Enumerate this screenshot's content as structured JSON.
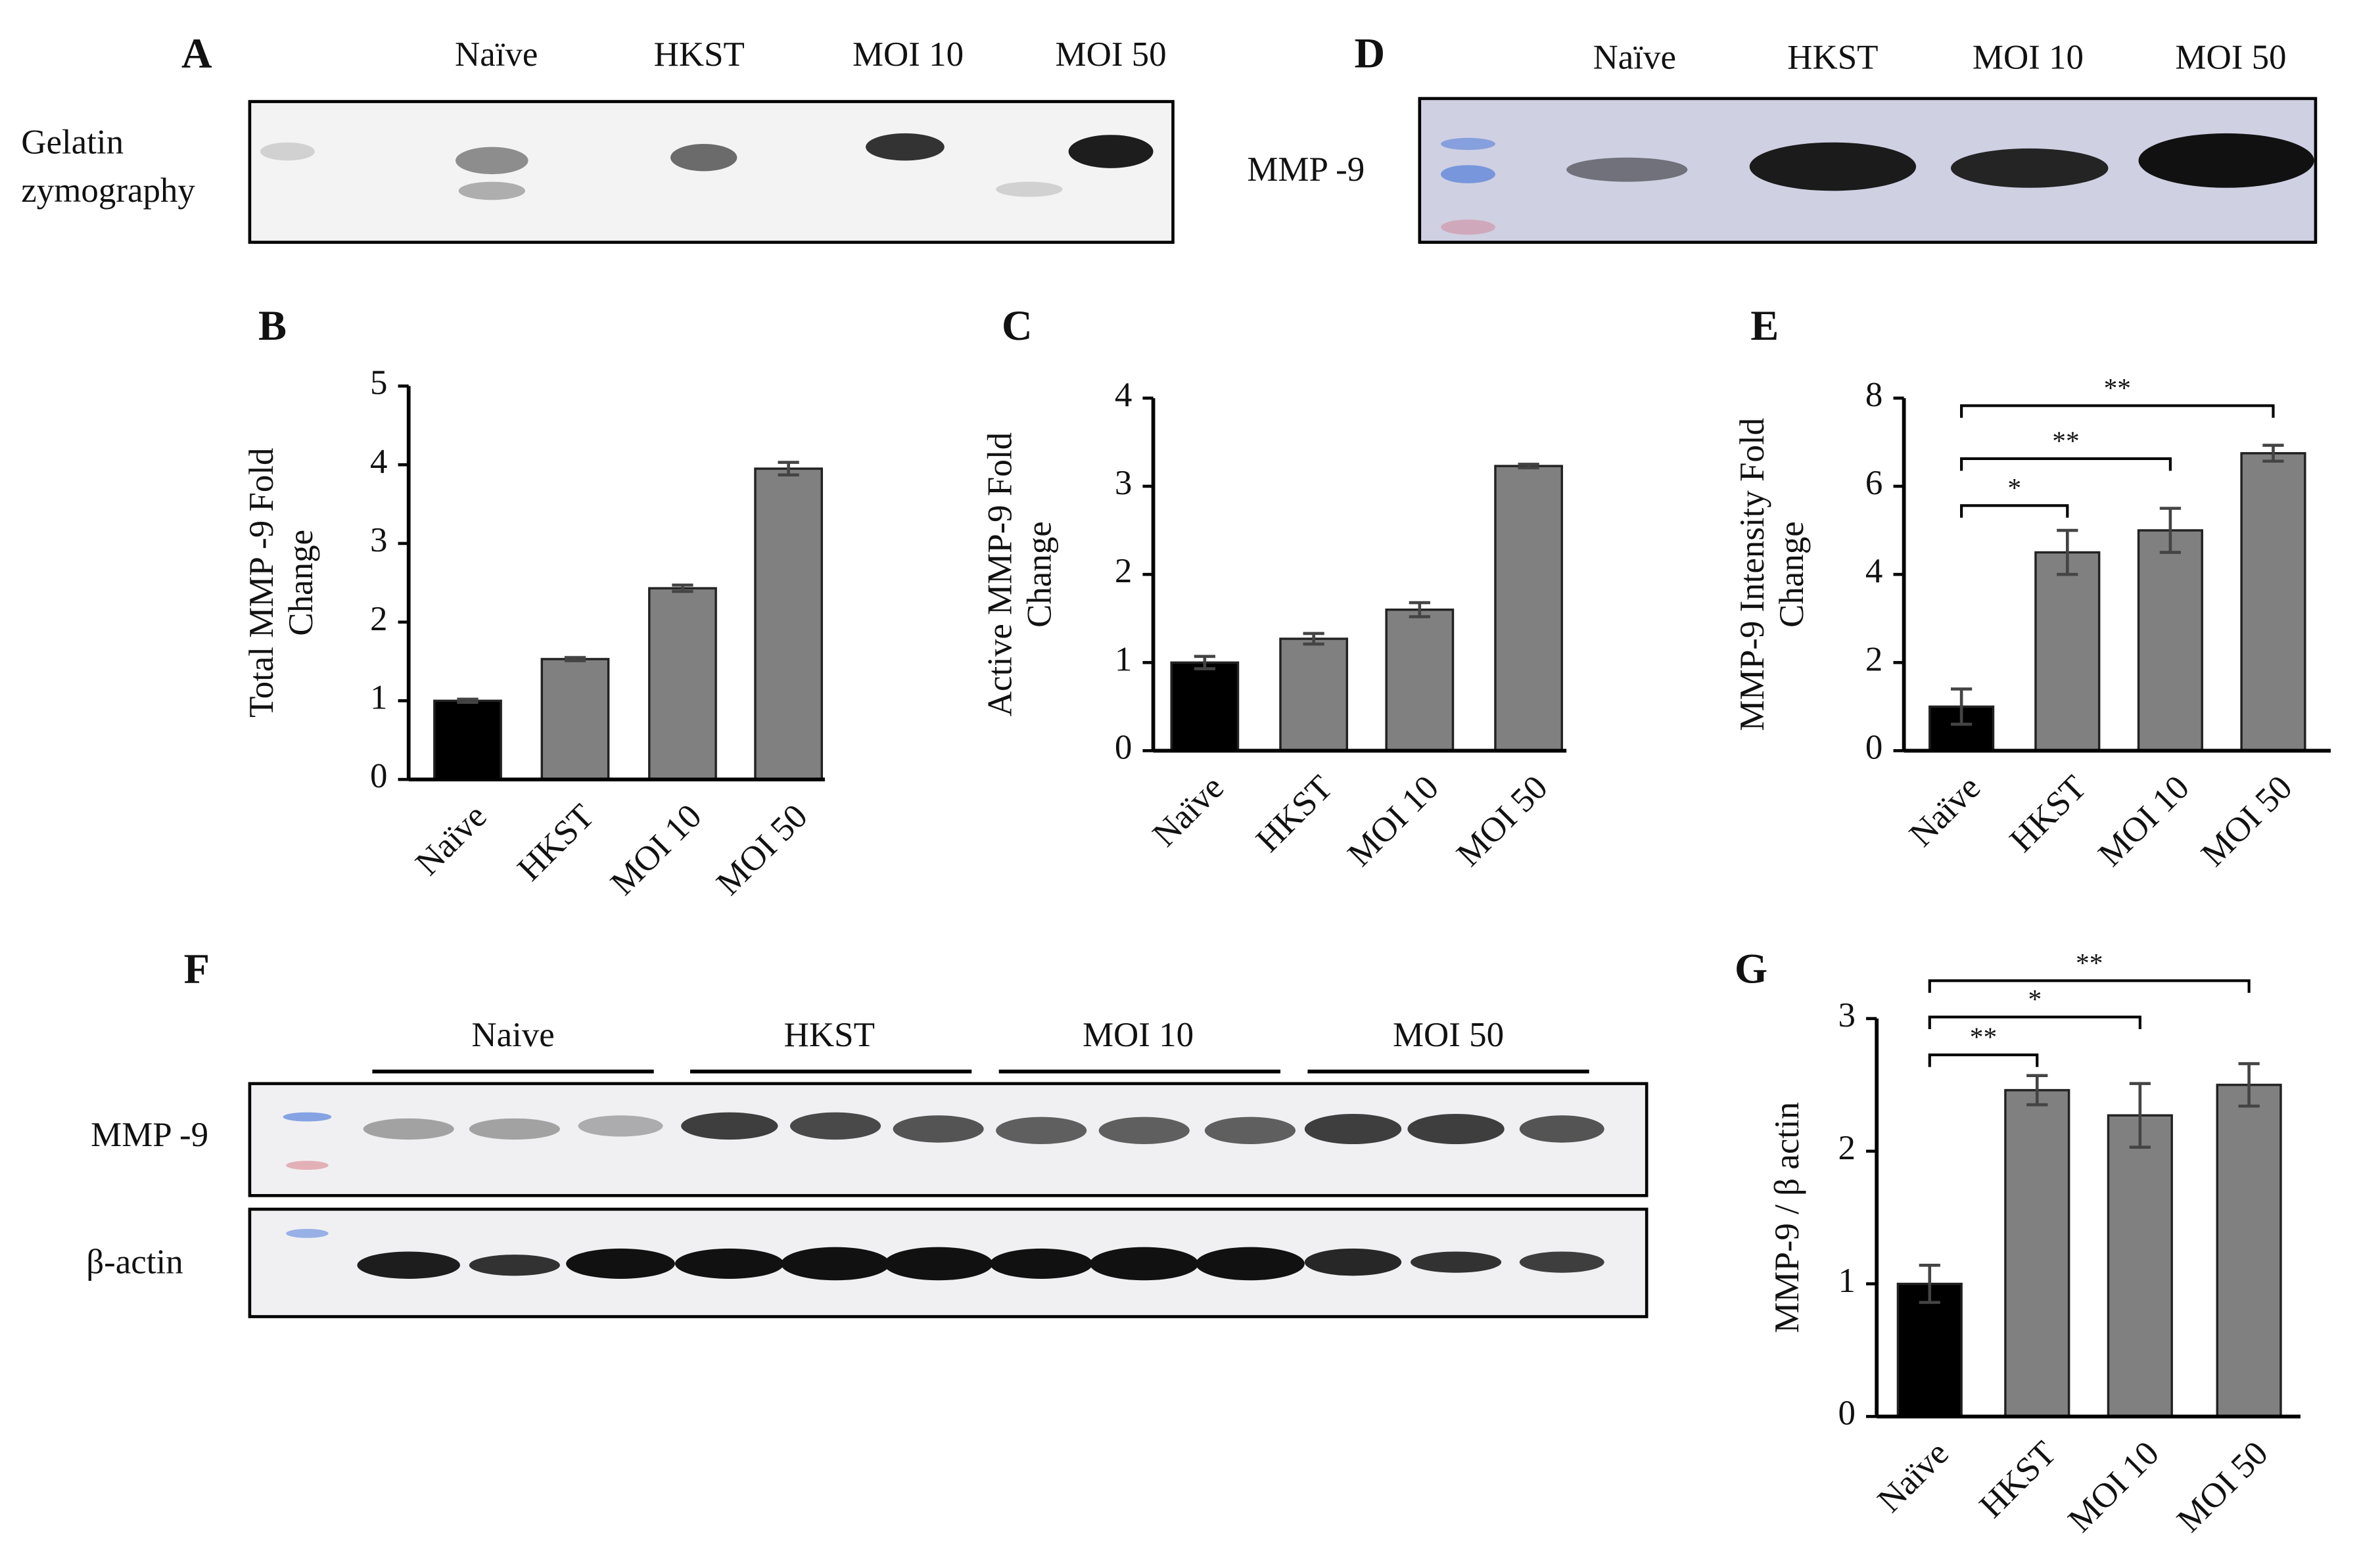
{
  "blots": [
    {
      "panel": "A",
      "lanes": [
        "Naïve",
        "HKST",
        "MOI  10",
        "MOI  50"
      ],
      "rows": [
        [
          "Gelatin",
          "zymography"
        ]
      ]
    },
    {
      "panel": "D",
      "lanes": [
        "Naïve",
        "HKST",
        "MOI  10",
        "MOI  50"
      ],
      "rows": [
        [
          "MMP -9"
        ]
      ]
    },
    {
      "panel": "F",
      "lanes": [
        "Naive",
        "HKST",
        "MOI  10",
        "MOI  50"
      ],
      "rows": [
        [
          "MMP -9"
        ],
        [
          "β-actin"
        ]
      ]
    }
  ],
  "chart_data": [
    {
      "type": "bar",
      "panel": "B",
      "ylabel": [
        "Total MMP -9 Fold",
        "Change"
      ],
      "categories": [
        "Naïve",
        "HKST",
        "MOI 10",
        "MOI 50"
      ],
      "values": [
        1.0,
        1.53,
        2.43,
        3.95
      ],
      "errors": [
        0.02,
        0.02,
        0.04,
        0.08
      ],
      "colors": [
        "#000000",
        "#808080",
        "#808080",
        "#808080"
      ],
      "ylim": [
        0,
        5
      ],
      "yticks": [
        0,
        1,
        2,
        3,
        4,
        5
      ],
      "significance": []
    },
    {
      "type": "bar",
      "panel": "C",
      "ylabel": [
        "Active MMP-9 Fold",
        "Change"
      ],
      "categories": [
        "Naïve",
        "HKST",
        "MOI 10",
        "MOI 50"
      ],
      "values": [
        1.0,
        1.27,
        1.6,
        3.23
      ],
      "errors": [
        0.07,
        0.06,
        0.08,
        0.02
      ],
      "colors": [
        "#000000",
        "#808080",
        "#808080",
        "#808080"
      ],
      "ylim": [
        0,
        4
      ],
      "yticks": [
        0,
        1,
        2,
        3,
        4
      ],
      "significance": []
    },
    {
      "type": "bar",
      "panel": "E",
      "ylabel": [
        "MMP-9 Intensity Fold",
        "Change"
      ],
      "categories": [
        "Naïve",
        "HKST",
        "MOI 10",
        "MOI 50"
      ],
      "values": [
        1.0,
        4.5,
        5.0,
        6.75
      ],
      "errors": [
        0.4,
        0.5,
        0.5,
        0.18
      ],
      "colors": [
        "#000000",
        "#808080",
        "#808080",
        "#808080"
      ],
      "ylim": [
        0,
        8
      ],
      "yticks": [
        0,
        2,
        4,
        6,
        8
      ],
      "significance": [
        {
          "label": "**",
          "between": [
            "Naïve",
            "MOI 50"
          ]
        },
        {
          "label": "**",
          "between": [
            "Naïve",
            "MOI 10"
          ]
        },
        {
          "label": "*",
          "between": [
            "Naïve",
            "HKST"
          ]
        }
      ]
    },
    {
      "type": "bar",
      "panel": "G",
      "ylabel": [
        "MMP-9 / β actin"
      ],
      "categories": [
        "Naïve",
        "HKST",
        "MOI 10",
        "MOI 50"
      ],
      "values": [
        1.0,
        2.46,
        2.27,
        2.5
      ],
      "errors": [
        0.14,
        0.11,
        0.24,
        0.16
      ],
      "colors": [
        "#000000",
        "#808080",
        "#808080",
        "#808080"
      ],
      "ylim": [
        0,
        3
      ],
      "yticks": [
        0,
        1,
        2,
        3
      ],
      "significance": [
        {
          "label": "**",
          "between": [
            "Naïve",
            "MOI 50"
          ]
        },
        {
          "label": "*",
          "between": [
            "Naïve",
            "MOI 10"
          ]
        },
        {
          "label": "**",
          "between": [
            "Naïve",
            "HKST"
          ]
        }
      ]
    }
  ]
}
